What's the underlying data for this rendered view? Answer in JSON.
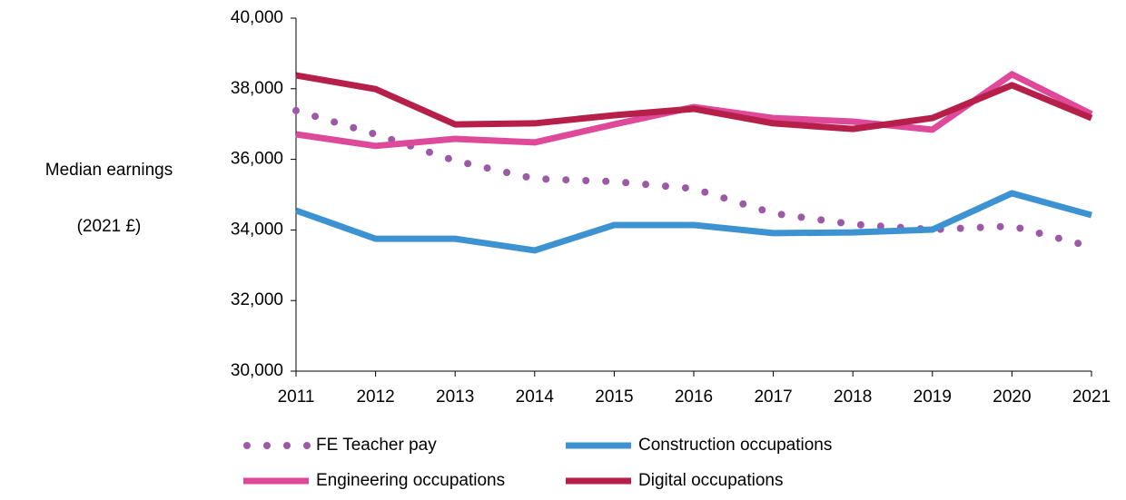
{
  "chart_data": {
    "type": "line",
    "ylabel": [
      "Median earnings",
      "(2021 £)"
    ],
    "categories": [
      "2011",
      "2012",
      "2013",
      "2014",
      "2015",
      "2016",
      "2017",
      "2018",
      "2019",
      "2020",
      "2021"
    ],
    "series": [
      {
        "name": "FE Teacher pay",
        "color": "#9c5aa6",
        "style": "dotted",
        "values": [
          37380,
          36710,
          35960,
          35450,
          35370,
          35170,
          34470,
          34160,
          34010,
          34110,
          33520
        ]
      },
      {
        "name": "Construction occupations",
        "color": "#3d93d1",
        "style": "solid",
        "values": [
          34550,
          33750,
          33750,
          33420,
          34140,
          34140,
          33910,
          33930,
          34010,
          35040,
          34420
        ]
      },
      {
        "name": "Engineering occupations",
        "color": "#de4a99",
        "style": "solid",
        "values": [
          36710,
          36380,
          36580,
          36480,
          36990,
          37480,
          37170,
          37070,
          36840,
          38410,
          37280
        ]
      },
      {
        "name": "Digital occupations",
        "color": "#b51f4a",
        "style": "solid",
        "values": [
          38380,
          37990,
          36990,
          37020,
          37250,
          37430,
          37020,
          36860,
          37170,
          38100,
          37170
        ]
      }
    ],
    "ylim": [
      30000,
      40000
    ],
    "yticks": [
      {
        "value": 30000,
        "label": "30,000"
      },
      {
        "value": 32000,
        "label": "32,000"
      },
      {
        "value": 34000,
        "label": "34,000"
      },
      {
        "value": 36000,
        "label": "36,000"
      },
      {
        "value": 38000,
        "label": "38,000"
      },
      {
        "value": 40000,
        "label": "40,000"
      }
    ],
    "grid": false,
    "legend": "bottom"
  }
}
